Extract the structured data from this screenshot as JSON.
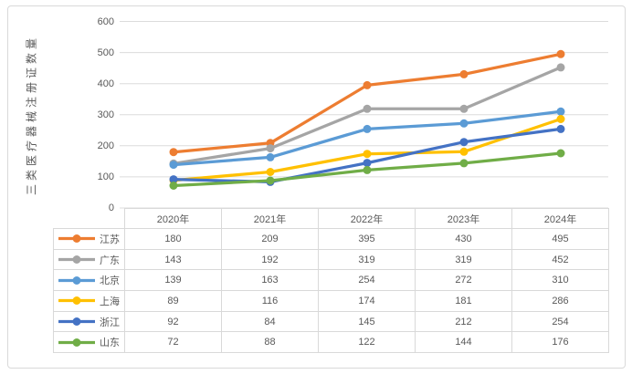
{
  "colors": {
    "background": "#ffffff",
    "frame_border": "#d9d9d9",
    "grid": "#dcdcdc",
    "table_border": "#d9d9d9",
    "text": "#595959"
  },
  "chart_data": {
    "type": "line",
    "title": "",
    "ylabel": "三类医疗器械注册证数量",
    "xlabel": "",
    "categories": [
      "2020年",
      "2021年",
      "2022年",
      "2023年",
      "2024年"
    ],
    "series": [
      {
        "name": "江苏",
        "color": "#ED7D31",
        "values": [
          180,
          209,
          395,
          430,
          495
        ]
      },
      {
        "name": "广东",
        "color": "#A5A5A5",
        "values": [
          143,
          192,
          319,
          319,
          452
        ]
      },
      {
        "name": "北京",
        "color": "#5B9BD5",
        "values": [
          139,
          163,
          254,
          272,
          310
        ]
      },
      {
        "name": "上海",
        "color": "#FFC000",
        "values": [
          89,
          116,
          174,
          181,
          286
        ]
      },
      {
        "name": "浙江",
        "color": "#4472C4",
        "values": [
          92,
          84,
          145,
          212,
          254
        ]
      },
      {
        "name": "山东",
        "color": "#70AD47",
        "values": [
          72,
          88,
          122,
          144,
          176
        ]
      }
    ],
    "y_ticks": [
      0,
      100,
      200,
      300,
      400,
      500,
      600
    ],
    "ylim": [
      0,
      600
    ],
    "grid": true,
    "marker": "circle",
    "legend_position": "data-table-left"
  }
}
